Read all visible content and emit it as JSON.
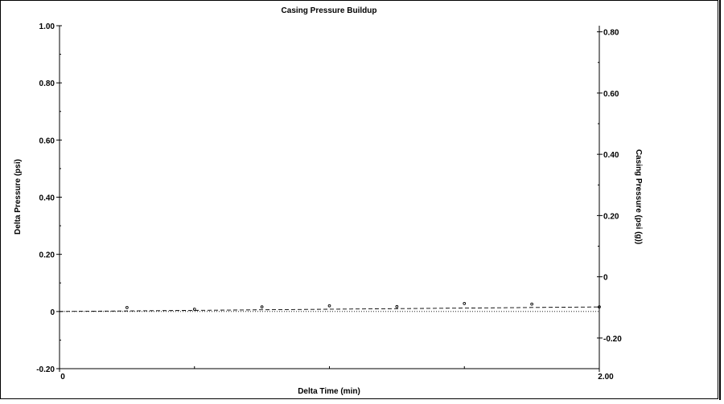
{
  "chart_data": {
    "type": "scatter",
    "title": "Casing Pressure Buildup",
    "xlabel": "Delta Time (min)",
    "ylabel": "Delta Pressure (psi)",
    "y2label": "Casing Pressure (psi (g))",
    "xlim": [
      0,
      2.0
    ],
    "ylim": [
      -0.2,
      1.0
    ],
    "y2lim": [
      -0.3,
      0.82
    ],
    "x_ticks": [
      {
        "value": 0,
        "label": "0"
      },
      {
        "value": 2.0,
        "label": "2.00"
      }
    ],
    "x_minor_ticks": [
      0.5,
      1.0,
      1.5
    ],
    "y_ticks": [
      {
        "value": -0.2,
        "label": "-0.20"
      },
      {
        "value": 0,
        "label": "0"
      },
      {
        "value": 0.2,
        "label": "0.20"
      },
      {
        "value": 0.4,
        "label": "0.40"
      },
      {
        "value": 0.6,
        "label": "0.60"
      },
      {
        "value": 0.8,
        "label": "0.80"
      },
      {
        "value": 1.0,
        "label": "1.00"
      }
    ],
    "y2_ticks": [
      {
        "value": -0.2,
        "label": "-0.20"
      },
      {
        "value": 0,
        "label": "0"
      },
      {
        "value": 0.2,
        "label": "0.20"
      },
      {
        "value": 0.4,
        "label": "0.40"
      },
      {
        "value": 0.6,
        "label": "0.60"
      },
      {
        "value": 0.8,
        "label": "0.80"
      }
    ],
    "series": [
      {
        "style": "points",
        "axis": "left",
        "x": [
          0.25,
          0.5,
          0.75,
          1.0,
          1.25,
          1.5,
          1.75,
          2.0
        ],
        "y": [
          0.014,
          0.008,
          0.016,
          0.02,
          0.017,
          0.028,
          0.026,
          0.016
        ]
      },
      {
        "style": "dashed",
        "axis": "left",
        "x": [
          0,
          0.25,
          0.5,
          0.75,
          1.0,
          1.25,
          1.5,
          1.75,
          2.0
        ],
        "y": [
          0.0,
          0.002,
          0.004,
          0.006,
          0.008,
          0.01,
          0.012,
          0.014,
          0.016
        ]
      },
      {
        "style": "dotted",
        "axis": "left",
        "x": [
          0,
          2.0
        ],
        "y": [
          0.0,
          0.0
        ]
      }
    ],
    "grid": false,
    "legend": "none"
  }
}
